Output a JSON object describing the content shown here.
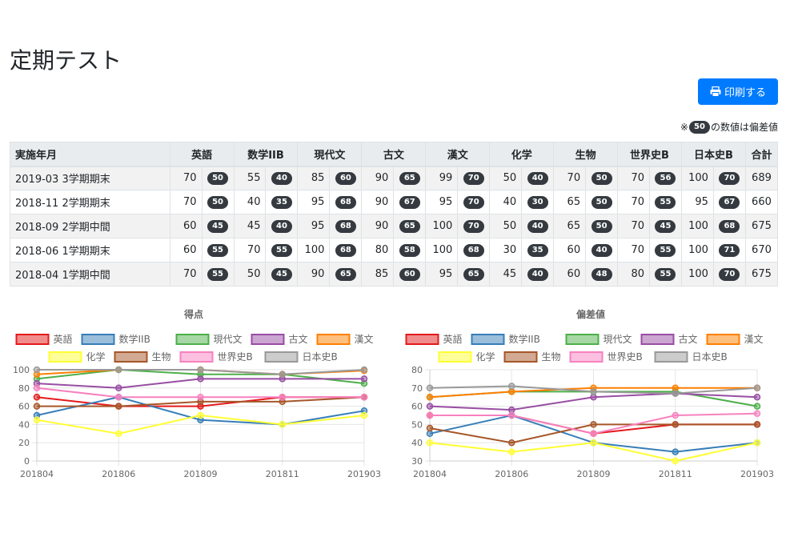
{
  "page": {
    "title": "定期テスト"
  },
  "toolbar": {
    "print_label": "印刷する",
    "print_icon": "printer-icon"
  },
  "note": {
    "prefix": "※",
    "badge": "50",
    "suffix": "の数値は偏差値"
  },
  "table": {
    "headers": [
      "実施年月",
      "英語",
      "数学IIB",
      "現代文",
      "古文",
      "漢文",
      "化学",
      "生物",
      "世界史B",
      "日本史B",
      "合計"
    ],
    "rows": [
      {
        "date": "2019-03 3学期期末",
        "cells": [
          [
            "70",
            "50"
          ],
          [
            "55",
            "40"
          ],
          [
            "85",
            "60"
          ],
          [
            "90",
            "65"
          ],
          [
            "99",
            "70"
          ],
          [
            "50",
            "40"
          ],
          [
            "70",
            "50"
          ],
          [
            "70",
            "56"
          ],
          [
            "100",
            "70"
          ]
        ],
        "total": "689"
      },
      {
        "date": "2018-11 2学期期末",
        "cells": [
          [
            "70",
            "50"
          ],
          [
            "40",
            "35"
          ],
          [
            "95",
            "68"
          ],
          [
            "90",
            "67"
          ],
          [
            "95",
            "70"
          ],
          [
            "40",
            "30"
          ],
          [
            "65",
            "50"
          ],
          [
            "70",
            "55"
          ],
          [
            "95",
            "67"
          ]
        ],
        "total": "660"
      },
      {
        "date": "2018-09 2学期中間",
        "cells": [
          [
            "60",
            "45"
          ],
          [
            "45",
            "40"
          ],
          [
            "95",
            "68"
          ],
          [
            "90",
            "65"
          ],
          [
            "100",
            "70"
          ],
          [
            "50",
            "40"
          ],
          [
            "65",
            "50"
          ],
          [
            "70",
            "45"
          ],
          [
            "100",
            "68"
          ]
        ],
        "total": "675"
      },
      {
        "date": "2018-06 1学期期末",
        "cells": [
          [
            "60",
            "55"
          ],
          [
            "70",
            "55"
          ],
          [
            "100",
            "68"
          ],
          [
            "80",
            "58"
          ],
          [
            "100",
            "68"
          ],
          [
            "30",
            "35"
          ],
          [
            "60",
            "40"
          ],
          [
            "70",
            "55"
          ],
          [
            "100",
            "71"
          ]
        ],
        "total": "670"
      },
      {
        "date": "2018-04 1学期中間",
        "cells": [
          [
            "70",
            "55"
          ],
          [
            "50",
            "45"
          ],
          [
            "90",
            "65"
          ],
          [
            "85",
            "60"
          ],
          [
            "95",
            "65"
          ],
          [
            "45",
            "40"
          ],
          [
            "60",
            "48"
          ],
          [
            "80",
            "55"
          ],
          [
            "100",
            "70"
          ]
        ],
        "total": "675"
      }
    ]
  },
  "chart_data": [
    {
      "type": "line",
      "title": "得点",
      "x": [
        "201804",
        "201806",
        "201809",
        "201811",
        "201903"
      ],
      "ylim": [
        0,
        100
      ],
      "yticks": [
        0,
        20,
        40,
        60,
        80,
        100
      ],
      "legend": "top",
      "grid": true,
      "series": [
        {
          "name": "英語",
          "color": "#e41a1c",
          "values": [
            70,
            60,
            60,
            70,
            70
          ]
        },
        {
          "name": "数学IIB",
          "color": "#377eb8",
          "values": [
            50,
            70,
            45,
            40,
            55
          ]
        },
        {
          "name": "現代文",
          "color": "#4daf4a",
          "values": [
            90,
            100,
            95,
            95,
            85
          ]
        },
        {
          "name": "古文",
          "color": "#984ea3",
          "values": [
            85,
            80,
            90,
            90,
            90
          ]
        },
        {
          "name": "漢文",
          "color": "#ff7f00",
          "values": [
            95,
            100,
            100,
            95,
            99
          ]
        },
        {
          "name": "化学",
          "color": "#ffff33",
          "values": [
            45,
            30,
            50,
            40,
            50
          ]
        },
        {
          "name": "生物",
          "color": "#a65628",
          "values": [
            60,
            60,
            65,
            65,
            70
          ]
        },
        {
          "name": "世界史B",
          "color": "#f781bf",
          "values": [
            80,
            70,
            70,
            70,
            70
          ]
        },
        {
          "name": "日本史B",
          "color": "#999999",
          "values": [
            100,
            100,
            100,
            95,
            100
          ]
        }
      ]
    },
    {
      "type": "line",
      "title": "偏差値",
      "x": [
        "201804",
        "201806",
        "201809",
        "201811",
        "201903"
      ],
      "ylim": [
        30,
        80
      ],
      "yticks": [
        30,
        40,
        50,
        60,
        70,
        80
      ],
      "legend": "top",
      "grid": true,
      "series": [
        {
          "name": "英語",
          "color": "#e41a1c",
          "values": [
            55,
            55,
            45,
            50,
            50
          ]
        },
        {
          "name": "数学IIB",
          "color": "#377eb8",
          "values": [
            45,
            55,
            40,
            35,
            40
          ]
        },
        {
          "name": "現代文",
          "color": "#4daf4a",
          "values": [
            65,
            68,
            68,
            68,
            60
          ]
        },
        {
          "name": "古文",
          "color": "#984ea3",
          "values": [
            60,
            58,
            65,
            67,
            65
          ]
        },
        {
          "name": "漢文",
          "color": "#ff7f00",
          "values": [
            65,
            68,
            70,
            70,
            70
          ]
        },
        {
          "name": "化学",
          "color": "#ffff33",
          "values": [
            40,
            35,
            40,
            30,
            40
          ]
        },
        {
          "name": "生物",
          "color": "#a65628",
          "values": [
            48,
            40,
            50,
            50,
            50
          ]
        },
        {
          "name": "世界史B",
          "color": "#f781bf",
          "values": [
            55,
            55,
            45,
            55,
            56
          ]
        },
        {
          "name": "日本史B",
          "color": "#999999",
          "values": [
            70,
            71,
            68,
            67,
            70
          ]
        }
      ]
    }
  ]
}
